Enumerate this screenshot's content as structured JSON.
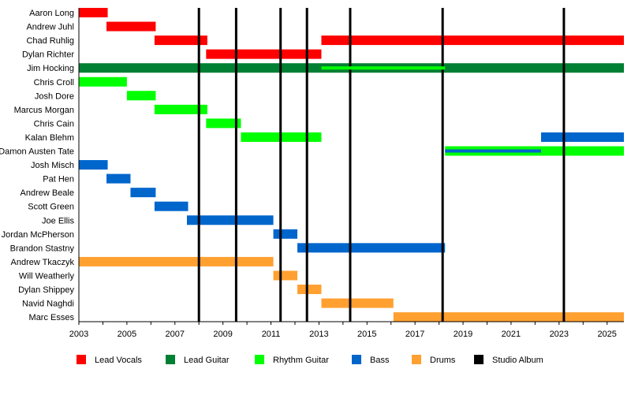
{
  "chart_data": {
    "type": "timeline",
    "xlim": [
      2003,
      2025.7
    ],
    "x_ticks": [
      2003,
      2005,
      2007,
      2009,
      2011,
      2013,
      2015,
      2017,
      2019,
      2021,
      2023,
      2025
    ],
    "grid": false,
    "legend_placement": "bottom",
    "roles": {
      "lead_vocals": {
        "label": "Lead Vocals",
        "color": "#ff0000"
      },
      "lead_guitar": {
        "label": "Lead Guitar",
        "color": "#008033"
      },
      "rhythm_guitar": {
        "label": "Rhythm Guitar",
        "color": "#00ff00"
      },
      "bass": {
        "label": "Bass",
        "color": "#0066cc"
      },
      "drums": {
        "label": "Drums",
        "color": "#ffa030"
      },
      "studio_album": {
        "label": "Studio Album",
        "color": "#000000"
      }
    },
    "legend_order": [
      "lead_vocals",
      "lead_guitar",
      "rhythm_guitar",
      "bass",
      "drums",
      "studio_album"
    ],
    "members": [
      {
        "name": "Aaron Long",
        "periods": [
          {
            "role": "lead_vocals",
            "start": 2003.0,
            "end": 2004.2
          }
        ]
      },
      {
        "name": "Andrew Juhl",
        "periods": [
          {
            "role": "lead_vocals",
            "start": 2004.15,
            "end": 2006.2
          }
        ]
      },
      {
        "name": "Chad Ruhlig",
        "periods": [
          {
            "role": "lead_vocals",
            "start": 2006.15,
            "end": 2008.35
          },
          {
            "role": "lead_vocals",
            "start": 2013.1,
            "end": 2025.7
          }
        ]
      },
      {
        "name": "Dylan Richter",
        "periods": [
          {
            "role": "lead_vocals",
            "start": 2008.3,
            "end": 2013.1
          }
        ]
      },
      {
        "name": "Jim Hocking",
        "periods": [
          {
            "role": "lead_guitar",
            "start": 2003.0,
            "end": 2025.7
          },
          {
            "role": "rhythm_guitar",
            "start": 2013.1,
            "end": 2018.25,
            "secondary": true
          }
        ]
      },
      {
        "name": "Chris Croll",
        "periods": [
          {
            "role": "rhythm_guitar",
            "start": 2003.0,
            "end": 2005.0
          }
        ]
      },
      {
        "name": "Josh Dore",
        "periods": [
          {
            "role": "rhythm_guitar",
            "start": 2005.0,
            "end": 2006.2
          }
        ]
      },
      {
        "name": "Marcus Morgan",
        "periods": [
          {
            "role": "rhythm_guitar",
            "start": 2006.15,
            "end": 2008.35
          }
        ]
      },
      {
        "name": "Chris Cain",
        "periods": [
          {
            "role": "rhythm_guitar",
            "start": 2008.3,
            "end": 2009.75
          }
        ]
      },
      {
        "name": "Kalan Blehm",
        "periods": [
          {
            "role": "rhythm_guitar",
            "start": 2009.75,
            "end": 2013.1
          },
          {
            "role": "bass",
            "start": 2022.25,
            "end": 2025.7
          }
        ]
      },
      {
        "name": "Damon Austen Tate",
        "periods": [
          {
            "role": "rhythm_guitar",
            "start": 2018.25,
            "end": 2025.7
          },
          {
            "role": "bass",
            "start": 2018.25,
            "end": 2022.25,
            "secondary": true
          }
        ]
      },
      {
        "name": "Josh Misch",
        "periods": [
          {
            "role": "bass",
            "start": 2003.0,
            "end": 2004.2
          }
        ]
      },
      {
        "name": "Pat Hen",
        "periods": [
          {
            "role": "bass",
            "start": 2004.15,
            "end": 2005.15
          }
        ]
      },
      {
        "name": "Andrew Beale",
        "periods": [
          {
            "role": "bass",
            "start": 2005.15,
            "end": 2006.2
          }
        ]
      },
      {
        "name": "Scott Green",
        "periods": [
          {
            "role": "bass",
            "start": 2006.15,
            "end": 2007.55
          }
        ]
      },
      {
        "name": "Joe Ellis",
        "periods": [
          {
            "role": "bass",
            "start": 2007.5,
            "end": 2011.1
          }
        ]
      },
      {
        "name": "Jordan McPherson",
        "periods": [
          {
            "role": "bass",
            "start": 2011.1,
            "end": 2012.1
          }
        ]
      },
      {
        "name": "Brandon Stastny",
        "periods": [
          {
            "role": "bass",
            "start": 2012.1,
            "end": 2018.25
          }
        ]
      },
      {
        "name": "Andrew Tkaczyk",
        "periods": [
          {
            "role": "drums",
            "start": 2003.0,
            "end": 2011.1
          }
        ]
      },
      {
        "name": "Will Weatherly",
        "periods": [
          {
            "role": "drums",
            "start": 2011.1,
            "end": 2012.1
          }
        ]
      },
      {
        "name": "Dylan Shippey",
        "periods": [
          {
            "role": "drums",
            "start": 2012.1,
            "end": 2013.1
          }
        ]
      },
      {
        "name": "Navid Naghdi",
        "periods": [
          {
            "role": "drums",
            "start": 2013.1,
            "end": 2016.1
          }
        ]
      },
      {
        "name": "Marc Esses",
        "periods": [
          {
            "role": "drums",
            "start": 2016.1,
            "end": 2025.7
          }
        ]
      }
    ],
    "studio_albums": [
      2008.0,
      2009.55,
      2011.4,
      2012.5,
      2014.3,
      2018.15,
      2023.2
    ]
  }
}
